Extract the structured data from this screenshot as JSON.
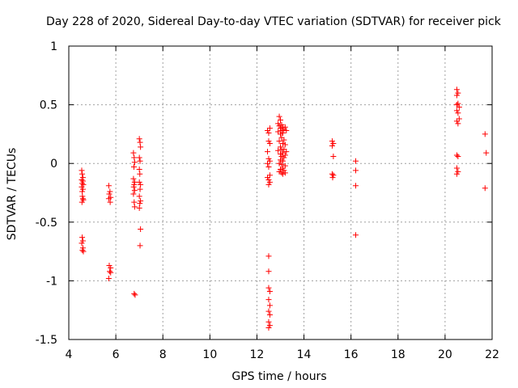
{
  "chart_data": {
    "type": "scatter",
    "title": "Day 228 of 2020, Sidereal Day-to-day VTEC variation (SDTVAR) for receiver pick",
    "xlabel": "GPS time / hours",
    "ylabel": "SDTVAR / TECUs",
    "xlim": [
      4,
      22
    ],
    "ylim": [
      -1.5,
      1
    ],
    "xticks": [
      4,
      6,
      8,
      10,
      12,
      14,
      16,
      18,
      20,
      22
    ],
    "yticks": [
      1,
      0.5,
      0,
      -0.5,
      -1,
      -1.5
    ],
    "xtick_labels": [
      "4",
      "6",
      "8",
      "10",
      "12",
      "14",
      "16",
      "18",
      "20",
      "22"
    ],
    "ytick_labels": [
      "1",
      "0.5",
      "0",
      "-0.5",
      "-1",
      "-1.5"
    ],
    "grid": true,
    "marker": "+",
    "color": "#ff0000",
    "series": [
      {
        "name": "SDTVAR",
        "points": [
          [
            4.55,
            -0.06
          ],
          [
            4.57,
            -0.09
          ],
          [
            4.6,
            -0.12
          ],
          [
            4.55,
            -0.14
          ],
          [
            4.6,
            -0.15
          ],
          [
            4.57,
            -0.17
          ],
          [
            4.62,
            -0.18
          ],
          [
            4.55,
            -0.2
          ],
          [
            4.6,
            -0.22
          ],
          [
            4.57,
            -0.24
          ],
          [
            4.58,
            -0.28
          ],
          [
            4.6,
            -0.3
          ],
          [
            4.62,
            -0.31
          ],
          [
            4.56,
            -0.33
          ],
          [
            4.57,
            -0.63
          ],
          [
            4.6,
            -0.66
          ],
          [
            4.55,
            -0.68
          ],
          [
            4.6,
            -0.72
          ],
          [
            4.58,
            -0.74
          ],
          [
            4.62,
            -0.75
          ],
          [
            5.7,
            -0.19
          ],
          [
            5.75,
            -0.24
          ],
          [
            5.72,
            -0.26
          ],
          [
            5.78,
            -0.29
          ],
          [
            5.7,
            -0.3
          ],
          [
            5.76,
            -0.33
          ],
          [
            5.72,
            -0.87
          ],
          [
            5.78,
            -0.89
          ],
          [
            5.74,
            -0.92
          ],
          [
            5.78,
            -0.93
          ],
          [
            5.7,
            -0.98
          ],
          [
            6.75,
            0.09
          ],
          [
            6.78,
            0.05
          ],
          [
            6.8,
            0.01
          ],
          [
            6.77,
            -0.03
          ],
          [
            6.75,
            -0.13
          ],
          [
            6.8,
            -0.16
          ],
          [
            6.78,
            -0.18
          ],
          [
            6.76,
            -0.2
          ],
          [
            6.8,
            -0.23
          ],
          [
            6.75,
            -0.26
          ],
          [
            6.78,
            -0.33
          ],
          [
            6.8,
            -0.37
          ],
          [
            6.78,
            -1.11
          ],
          [
            6.82,
            -1.12
          ],
          [
            7.0,
            0.21
          ],
          [
            7.03,
            0.18
          ],
          [
            7.05,
            0.14
          ],
          [
            7.0,
            0.05
          ],
          [
            7.03,
            0.02
          ],
          [
            7.0,
            -0.05
          ],
          [
            7.02,
            -0.09
          ],
          [
            7.0,
            -0.16
          ],
          [
            7.05,
            -0.18
          ],
          [
            7.03,
            -0.22
          ],
          [
            7.0,
            -0.28
          ],
          [
            7.05,
            -0.32
          ],
          [
            7.02,
            -0.34
          ],
          [
            7.0,
            -0.38
          ],
          [
            7.05,
            -0.56
          ],
          [
            7.03,
            -0.7
          ],
          [
            12.45,
            0.28
          ],
          [
            12.5,
            0.26
          ],
          [
            12.55,
            0.3
          ],
          [
            12.5,
            0.19
          ],
          [
            12.55,
            0.17
          ],
          [
            12.45,
            0.1
          ],
          [
            12.5,
            0.04
          ],
          [
            12.55,
            0.02
          ],
          [
            12.45,
            0.0
          ],
          [
            12.5,
            -0.03
          ],
          [
            12.55,
            -0.1
          ],
          [
            12.45,
            -0.12
          ],
          [
            12.5,
            -0.14
          ],
          [
            12.55,
            -0.16
          ],
          [
            12.5,
            -0.18
          ],
          [
            12.5,
            -0.79
          ],
          [
            12.5,
            -0.92
          ],
          [
            12.5,
            -1.06
          ],
          [
            12.55,
            -1.09
          ],
          [
            12.5,
            -1.16
          ],
          [
            12.55,
            -1.21
          ],
          [
            12.5,
            -1.26
          ],
          [
            12.55,
            -1.29
          ],
          [
            12.5,
            -1.35
          ],
          [
            12.55,
            -1.38
          ],
          [
            12.5,
            -1.4
          ],
          [
            12.95,
            0.4
          ],
          [
            13.0,
            0.37
          ],
          [
            12.9,
            0.34
          ],
          [
            13.05,
            0.33
          ],
          [
            12.95,
            0.32
          ],
          [
            13.1,
            0.31
          ],
          [
            13.2,
            0.31
          ],
          [
            13.0,
            0.3
          ],
          [
            13.15,
            0.29
          ],
          [
            13.05,
            0.28
          ],
          [
            12.9,
            0.27
          ],
          [
            13.25,
            0.28
          ],
          [
            13.1,
            0.26
          ],
          [
            13.0,
            0.25
          ],
          [
            13.05,
            0.22
          ],
          [
            13.15,
            0.2
          ],
          [
            12.95,
            0.19
          ],
          [
            13.1,
            0.17
          ],
          [
            13.2,
            0.16
          ],
          [
            13.0,
            0.14
          ],
          [
            13.05,
            0.12
          ],
          [
            13.15,
            0.12
          ],
          [
            12.9,
            0.11
          ],
          [
            13.25,
            0.1
          ],
          [
            13.1,
            0.09
          ],
          [
            13.0,
            0.08
          ],
          [
            13.2,
            0.07
          ],
          [
            13.05,
            0.06
          ],
          [
            13.15,
            0.05
          ],
          [
            13.0,
            0.03
          ],
          [
            13.1,
            0.02
          ],
          [
            12.95,
            0.0
          ],
          [
            13.05,
            -0.01
          ],
          [
            13.2,
            -0.02
          ],
          [
            13.1,
            -0.04
          ],
          [
            13.0,
            -0.05
          ],
          [
            13.15,
            -0.06
          ],
          [
            12.95,
            -0.07
          ],
          [
            13.05,
            -0.08
          ],
          [
            13.2,
            -0.08
          ],
          [
            13.1,
            -0.09
          ],
          [
            15.2,
            0.19
          ],
          [
            15.25,
            0.17
          ],
          [
            15.2,
            0.15
          ],
          [
            15.25,
            0.06
          ],
          [
            15.2,
            -0.09
          ],
          [
            15.25,
            -0.1
          ],
          [
            15.22,
            -0.12
          ],
          [
            16.2,
            0.02
          ],
          [
            16.2,
            -0.06
          ],
          [
            16.2,
            -0.19
          ],
          [
            16.2,
            -0.61
          ],
          [
            20.5,
            0.63
          ],
          [
            20.55,
            0.6
          ],
          [
            20.5,
            0.58
          ],
          [
            20.55,
            0.51
          ],
          [
            20.5,
            0.5
          ],
          [
            20.6,
            0.48
          ],
          [
            20.5,
            0.45
          ],
          [
            20.55,
            0.43
          ],
          [
            20.6,
            0.38
          ],
          [
            20.5,
            0.36
          ],
          [
            20.55,
            0.34
          ],
          [
            20.5,
            0.07
          ],
          [
            20.55,
            0.06
          ],
          [
            20.5,
            -0.04
          ],
          [
            20.55,
            -0.07
          ],
          [
            20.5,
            -0.09
          ],
          [
            21.7,
            0.25
          ],
          [
            21.75,
            0.09
          ],
          [
            21.7,
            -0.21
          ]
        ]
      }
    ]
  }
}
